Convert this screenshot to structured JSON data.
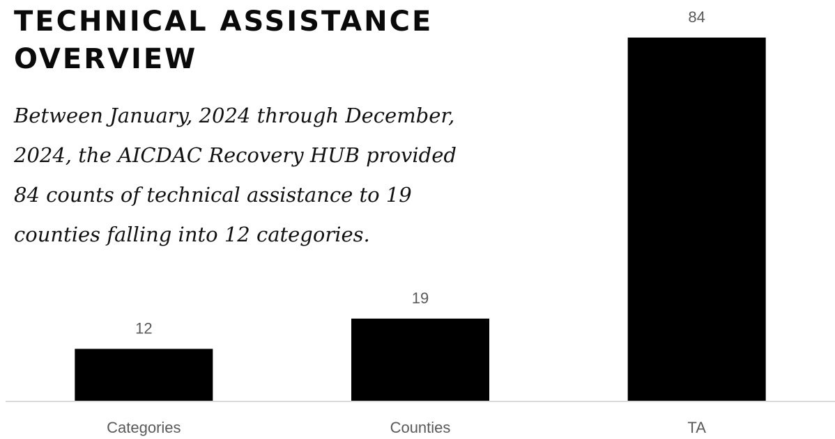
{
  "heading": {
    "lines": [
      "TECHNICAL ASSISTANCE",
      "OVERVIEW"
    ]
  },
  "intro": {
    "lines": [
      "Between January, 2024 through December,",
      "2024, the AICDAC Recovery HUB provided",
      "84 counts of technical assistance to 19",
      "counties falling into 12 categories."
    ]
  },
  "chart_data": {
    "type": "bar",
    "title": "",
    "xlabel": "",
    "ylabel": "",
    "categories": [
      "Categories",
      "Counties",
      "TA"
    ],
    "values": [
      12,
      19,
      84
    ],
    "data_labels": [
      "12",
      "19",
      "84"
    ],
    "ylim": [
      0,
      84
    ],
    "grid": false,
    "legend": "none",
    "colors": {
      "bar": "#000000",
      "axis": "#d9d9d9",
      "label": "#595959"
    }
  }
}
